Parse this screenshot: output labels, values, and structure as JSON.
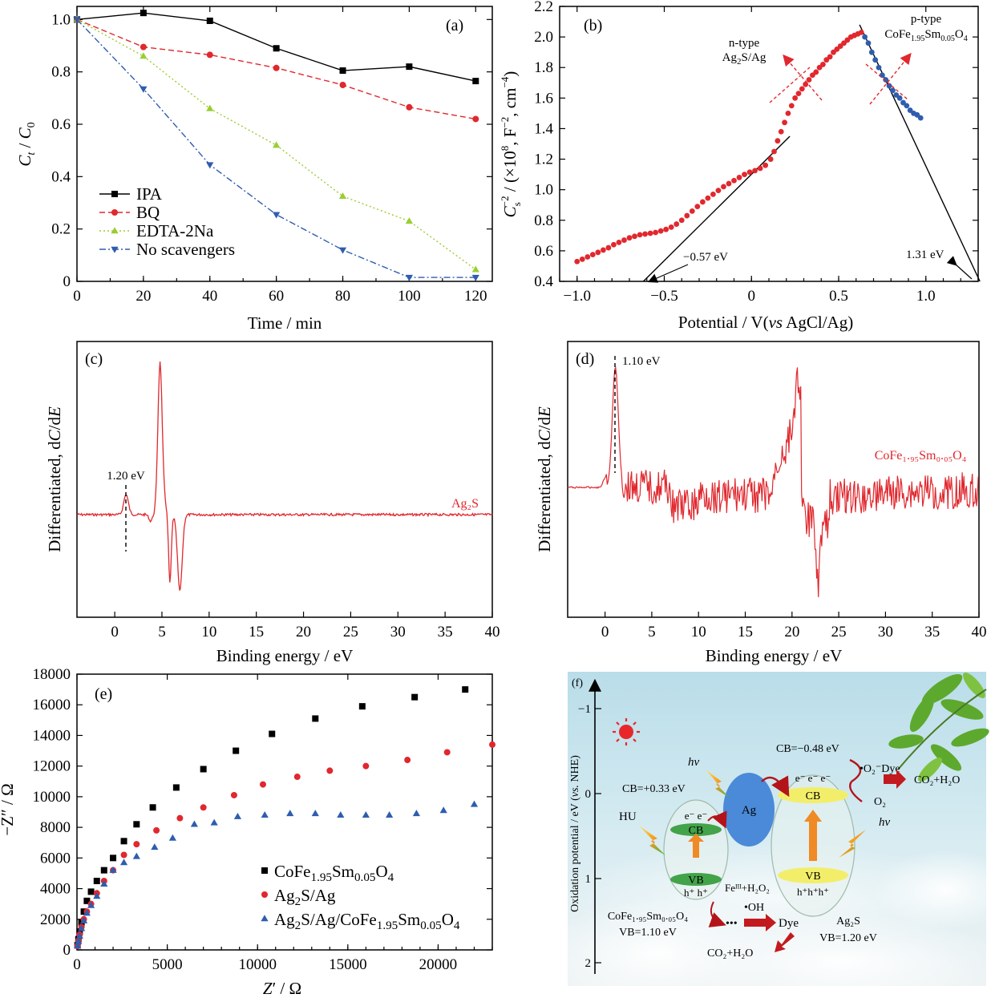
{
  "chart_data": [
    {
      "panel": "(a)",
      "type": "line",
      "xlabel": "Time / min",
      "ylabel": "C_t / C_0",
      "xlim": [
        0,
        125
      ],
      "ylim": [
        0,
        1.05
      ],
      "xticks": [
        "0",
        "20",
        "40",
        "60",
        "80",
        "100",
        "120"
      ],
      "yticks": [
        "0",
        "0.2",
        "0.4",
        "0.6",
        "0.8",
        "1.0"
      ],
      "legend_position": "left-middle",
      "x": [
        0,
        20,
        40,
        60,
        80,
        100,
        120
      ],
      "series": [
        {
          "name": "IPA",
          "color": "#000000",
          "marker": "square",
          "dash": "solid",
          "values": [
            1.0,
            1.025,
            0.995,
            0.89,
            0.805,
            0.82,
            0.765
          ]
        },
        {
          "name": "BQ",
          "color": "#e0282e",
          "marker": "circle",
          "dash": "dashed",
          "values": [
            1.0,
            0.895,
            0.865,
            0.815,
            0.75,
            0.665,
            0.62
          ]
        },
        {
          "name": "EDTA-2Na",
          "color": "#9acd32",
          "marker": "triangle-up",
          "dash": "dotted",
          "values": [
            1.0,
            0.86,
            0.66,
            0.52,
            0.325,
            0.23,
            0.045
          ]
        },
        {
          "name": "No scavengers",
          "color": "#2f5dae",
          "marker": "triangle-down",
          "dash": "dashdot",
          "values": [
            1.0,
            0.735,
            0.445,
            0.255,
            0.12,
            0.015,
            0.015
          ]
        }
      ]
    },
    {
      "panel": "(b)",
      "type": "scatter",
      "xlabel_parts": [
        "Potential / V(",
        "vs",
        " AgCl/Ag)"
      ],
      "ylabel": "C_s^-2 / (×10^8, F^-2, cm^-4)",
      "xlim": [
        -1.1,
        1.3
      ],
      "ylim": [
        0.4,
        2.2
      ],
      "xticks": [
        "−1.0",
        "−0.5",
        "0",
        "0.5",
        "1.0"
      ],
      "yticks": [
        "0.4",
        "0.6",
        "0.8",
        "1.0",
        "1.2",
        "1.4",
        "1.6",
        "1.8",
        "2.0",
        "2.2"
      ],
      "series": [
        {
          "name": "n-type Ag2S/Ag",
          "color": "#e0282e",
          "x": [
            -1.0,
            -0.97,
            -0.94,
            -0.91,
            -0.88,
            -0.85,
            -0.82,
            -0.79,
            -0.76,
            -0.73,
            -0.7,
            -0.67,
            -0.64,
            -0.61,
            -0.58,
            -0.55,
            -0.52,
            -0.49,
            -0.46,
            -0.43,
            -0.4,
            -0.37,
            -0.34,
            -0.31,
            -0.28,
            -0.25,
            -0.22,
            -0.19,
            -0.16,
            -0.13,
            -0.1,
            -0.07,
            -0.04,
            -0.01,
            0.02,
            0.05,
            0.08,
            0.11,
            0.13,
            0.15,
            0.17,
            0.19,
            0.21,
            0.23,
            0.25,
            0.27,
            0.29,
            0.31,
            0.33,
            0.35,
            0.37,
            0.39,
            0.41,
            0.43,
            0.45,
            0.47,
            0.49,
            0.51,
            0.53,
            0.55,
            0.57,
            0.59,
            0.61,
            0.63
          ],
          "y": [
            0.53,
            0.545,
            0.56,
            0.575,
            0.59,
            0.605,
            0.62,
            0.64,
            0.655,
            0.67,
            0.685,
            0.695,
            0.705,
            0.71,
            0.715,
            0.72,
            0.73,
            0.74,
            0.755,
            0.775,
            0.8,
            0.83,
            0.86,
            0.89,
            0.92,
            0.945,
            0.97,
            0.995,
            1.02,
            1.04,
            1.06,
            1.08,
            1.1,
            1.115,
            1.125,
            1.14,
            1.16,
            1.2,
            1.25,
            1.32,
            1.38,
            1.44,
            1.5,
            1.55,
            1.6,
            1.63,
            1.66,
            1.69,
            1.72,
            1.75,
            1.77,
            1.8,
            1.82,
            1.85,
            1.87,
            1.9,
            1.92,
            1.94,
            1.96,
            1.98,
            2.0,
            2.01,
            2.02,
            2.03
          ]
        },
        {
          "name": "p-type CoFe1.95Sm0.05O4",
          "color": "#2f5dae",
          "x": [
            0.65,
            0.67,
            0.69,
            0.71,
            0.73,
            0.75,
            0.77,
            0.79,
            0.81,
            0.83,
            0.85,
            0.87,
            0.89,
            0.91,
            0.93,
            0.95,
            0.97
          ],
          "y": [
            2.0,
            1.96,
            1.9,
            1.85,
            1.8,
            1.75,
            1.72,
            1.68,
            1.65,
            1.62,
            1.6,
            1.57,
            1.55,
            1.52,
            1.5,
            1.49,
            1.47
          ]
        }
      ],
      "fit_lines": [
        {
          "x": [
            -0.62,
            0.22
          ],
          "y": [
            0.4,
            1.35
          ]
        },
        {
          "x": [
            0.62,
            1.31
          ],
          "y": [
            2.08,
            0.4
          ]
        }
      ],
      "annotations": {
        "n_label": [
          "n-type",
          "Ag2S/Ag"
        ],
        "p_label": [
          "p-type",
          "CoFe1.95Sm0.05O4"
        ],
        "n_intercept": "−0.57 eV",
        "p_intercept": "1.31 eV"
      }
    },
    {
      "panel": "(c)",
      "type": "line",
      "xlabel": "Binding energy / eV",
      "ylabel": "Differentiated, dC/dE",
      "xlim": [
        -4,
        40
      ],
      "xticks": [
        "0",
        "5",
        "10",
        "15",
        "20",
        "25",
        "30",
        "35",
        "40"
      ],
      "series": [
        {
          "name": "Ag2S",
          "color": "#e0282e"
        }
      ],
      "annotations": {
        "peak": "1.20 eV"
      }
    },
    {
      "panel": "(d)",
      "type": "line",
      "xlabel": "Binding energy / eV",
      "ylabel": "Differentiated, dC/dE",
      "xlim": [
        -4,
        40
      ],
      "xticks": [
        "0",
        "5",
        "10",
        "15",
        "20",
        "25",
        "30",
        "35",
        "40"
      ],
      "series": [
        {
          "name": "CoFe1.95Sm0.05O4",
          "color": "#e0282e"
        }
      ],
      "annotations": {
        "peak": "1.10 eV"
      }
    },
    {
      "panel": "(e)",
      "type": "scatter",
      "xlabel": "Z' / Ω",
      "ylabel": "−Z'' / Ω",
      "xlim": [
        0,
        23000
      ],
      "ylim": [
        0,
        18000
      ],
      "xticks": [
        "0",
        "5000",
        "10000",
        "15000",
        "20000"
      ],
      "yticks": [
        "0",
        "2000",
        "4000",
        "6000",
        "8000",
        "10000",
        "12000",
        "14000",
        "16000",
        "18000"
      ],
      "legend_position": "bottom-right",
      "series": [
        {
          "name": "CoFe1.95Sm0.05O4",
          "color": "#000000",
          "marker": "square",
          "x": [
            30,
            80,
            150,
            250,
            380,
            550,
            780,
            1100,
            1500,
            2000,
            2600,
            3300,
            4200,
            5500,
            7000,
            8800,
            10800,
            13200,
            15800,
            18700,
            21500
          ],
          "y": [
            300,
            700,
            1200,
            1800,
            2500,
            3200,
            3800,
            4500,
            5200,
            6000,
            7100,
            8200,
            9300,
            10600,
            11800,
            13000,
            14100,
            15100,
            15900,
            16500,
            17000
          ]
        },
        {
          "name": "Ag2S/Ag",
          "color": "#e0282e",
          "marker": "circle",
          "x": [
            30,
            80,
            150,
            250,
            380,
            550,
            780,
            1100,
            1500,
            2000,
            2600,
            3300,
            4400,
            5700,
            7000,
            8700,
            10300,
            12200,
            14000,
            16000,
            18300,
            20500,
            23000
          ],
          "y": [
            250,
            600,
            1000,
            1500,
            2000,
            2500,
            3000,
            3700,
            4500,
            5200,
            6200,
            6900,
            7800,
            8600,
            9300,
            10100,
            10800,
            11300,
            11700,
            12000,
            12400,
            12900,
            13400
          ]
        },
        {
          "name": "Ag2S/Ag/CoFe1.95Sm0.05O4",
          "color": "#2f5dae",
          "marker": "triangle-up",
          "x": [
            30,
            80,
            150,
            250,
            380,
            550,
            780,
            1100,
            1500,
            2000,
            2600,
            3300,
            4300,
            5300,
            6500,
            7600,
            8900,
            10400,
            11800,
            13200,
            14600,
            16000,
            17300,
            18800,
            20300,
            22000
          ],
          "y": [
            250,
            550,
            900,
            1400,
            1900,
            2400,
            2900,
            3500,
            4300,
            5200,
            5700,
            6100,
            6700,
            7300,
            8200,
            8300,
            8700,
            8800,
            8900,
            8900,
            8800,
            8800,
            8800,
            8900,
            9100,
            9500
          ]
        }
      ]
    }
  ],
  "panels": {
    "a": {
      "tag": "(a)",
      "ylabel_italic_C": "C",
      "ylabel_sub_t": "t",
      "ylabel_sep": " / ",
      "ylabel_sub_0": "0",
      "xlabel": "Time / min"
    },
    "b": {
      "tag": "(b)",
      "ylabel_C": "C",
      "ylabel_sub": "s",
      "ylabel_sup": "−2",
      "ylabel_rest_a": " / (×10",
      "ylabel_sup8": "8",
      "ylabel_rest_b": ", F",
      "ylabel_sup2": "−2",
      "ylabel_rest_c": ", cm",
      "ylabel_sup4": "−4",
      "ylabel_rest_d": ")"
    },
    "c": {
      "tag": "(c)",
      "series_label": "Ag₂S",
      "peak_label": "1.20 eV",
      "ylabel_a": "Differentiated, d",
      "ylabel_C": "C",
      "ylabel_slash": "/d",
      "ylabel_E": "E",
      "xlabel": "Binding energy / eV"
    },
    "d": {
      "tag": "(d)",
      "series_label": "CoFe₁.₉₅Sm₀.₀₅O₄",
      "peak_label": "1.10 eV",
      "xlabel": "Binding energy / eV"
    },
    "e": {
      "tag": "(e)",
      "xlabel_Z": "Z",
      "xlabel_rest": "′ / Ω",
      "ylabel": "−Z″ / Ω"
    },
    "f": {
      "tag": "(f)",
      "axis_label_a": "Oxidation potential / eV (",
      "axis_label_vs": "vs.",
      "axis_label_b": " NHE)",
      "ticks": [
        "−1",
        "0",
        "1",
        "2"
      ],
      "cb_left": "CB=+0.33 eV",
      "cb_right": "CB=−0.48 eV",
      "hv": "hν",
      "hu": "HU",
      "ag": "Ag",
      "cb": "CB",
      "vb": "VB",
      "electrons_left": "e⁻  e⁻",
      "electrons_right": "e⁻ e⁻ e⁻",
      "holes_left": "h⁺ h⁺",
      "holes_right": "h⁺h⁺h⁺",
      "fe_h2o2": "Feᴵᴵᴵ+H₂O₂",
      "oh": "•OH",
      "dots": "•••",
      "dye": "Dye",
      "superoxide_dye": "•O₂⁻Dye",
      "o2": "O₂",
      "co2_top": "CO₂+H₂O",
      "co2_bottom": "CO₂+H₂O",
      "left_material": "CoFe₁.₉₅Sm₀.₀₅O₄",
      "left_vb": "VB=1.10 eV",
      "right_material": "Ag₂S",
      "right_vb": "VB=1.20 eV"
    }
  }
}
